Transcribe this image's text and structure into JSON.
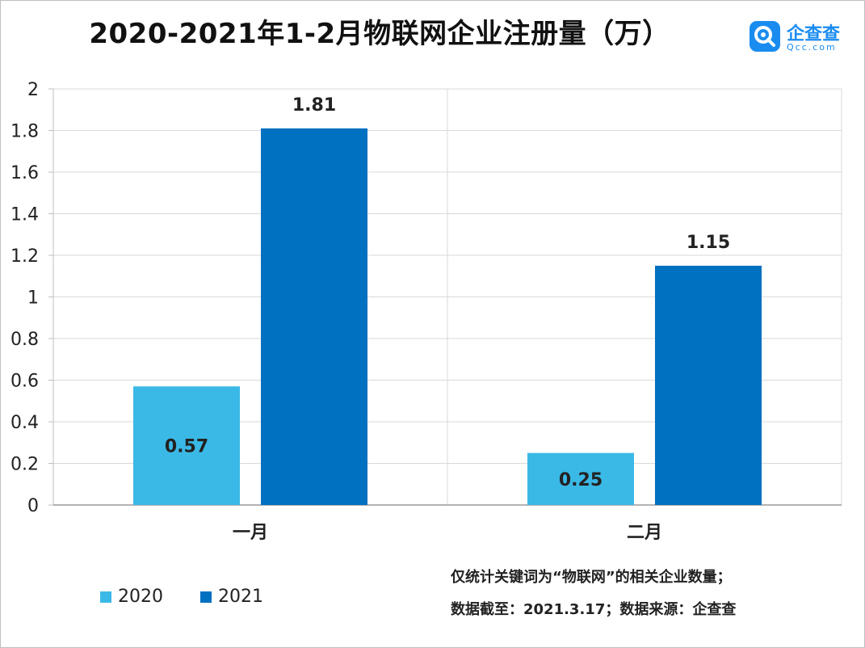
{
  "title": "2020-2021年1-2月物联网企业注册量（万）",
  "logo": {
    "name": "企查查",
    "domain": "Qcc.com"
  },
  "notes": {
    "line1": "仅统计关键词为“物联网”的相关企业数量；",
    "line2": "数据截至：2021.3.17；数据来源：企查查"
  },
  "colors": {
    "series_2020": "#3bb9e6",
    "series_2021": "#0070c0",
    "grid": "#d9d9d9",
    "logo": "#1a8cf0"
  },
  "chart_data": {
    "type": "bar",
    "categories": [
      "一月",
      "二月"
    ],
    "series": [
      {
        "name": "2020",
        "values": [
          0.57,
          0.25
        ]
      },
      {
        "name": "2021",
        "values": [
          1.81,
          1.15
        ]
      }
    ],
    "y_ticks": [
      "0",
      "0.2",
      "0.4",
      "0.6",
      "0.8",
      "1",
      "1.2",
      "1.4",
      "1.6",
      "1.8",
      "2"
    ],
    "ylim": [
      0,
      2
    ],
    "grid": true,
    "legend_position": "bottom-left"
  }
}
